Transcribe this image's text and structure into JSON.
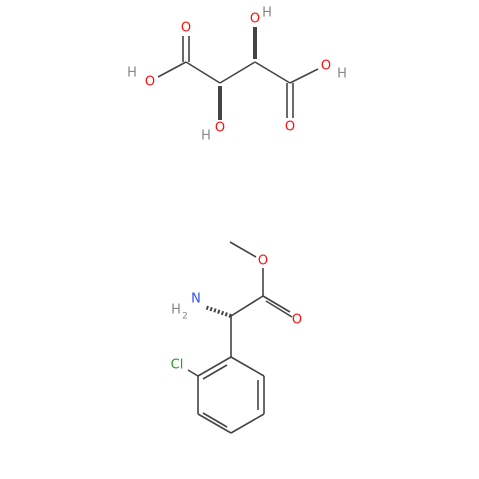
{
  "molecules": [
    {
      "name": "tartaric acid",
      "atoms": [
        {
          "element": "O"
        },
        {
          "element": "O",
          "hydrogen": "H"
        },
        {
          "element": "O",
          "hydrogen": "H"
        },
        {
          "element": "O",
          "hydrogen": "H"
        },
        {
          "element": "O",
          "hydrogen": "H"
        },
        {
          "element": "O"
        }
      ]
    },
    {
      "name": "methyl 2-amino-2-(2-chlorophenyl)acetate",
      "atoms": [
        {
          "element": "O"
        },
        {
          "element": "O"
        },
        {
          "element": "N",
          "hydrogen": "H",
          "count": "2"
        },
        {
          "element": "Cl"
        }
      ]
    }
  ]
}
